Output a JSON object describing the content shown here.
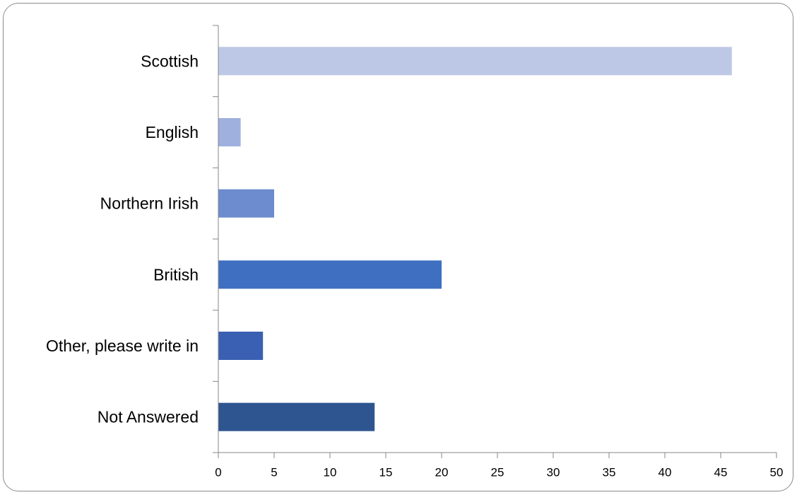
{
  "chart_data": {
    "type": "bar",
    "orientation": "horizontal",
    "categories": [
      "Scottish",
      "English",
      "Northern Irish",
      "British",
      "Other, please write in",
      "Not Answered"
    ],
    "values": [
      46,
      2,
      5,
      20,
      4,
      14
    ],
    "bar_colors": [
      "#bdc8e6",
      "#a0b0de",
      "#6d8ccf",
      "#3f6fc0",
      "#3960b2",
      "#2f5590"
    ],
    "xlim": [
      0,
      50
    ],
    "xticks": [
      "0",
      "5",
      "10",
      "15",
      "20",
      "25",
      "30",
      "35",
      "40",
      "45",
      "50"
    ],
    "title": "",
    "xlabel": "",
    "ylabel": "",
    "grid": false,
    "legend": false
  }
}
